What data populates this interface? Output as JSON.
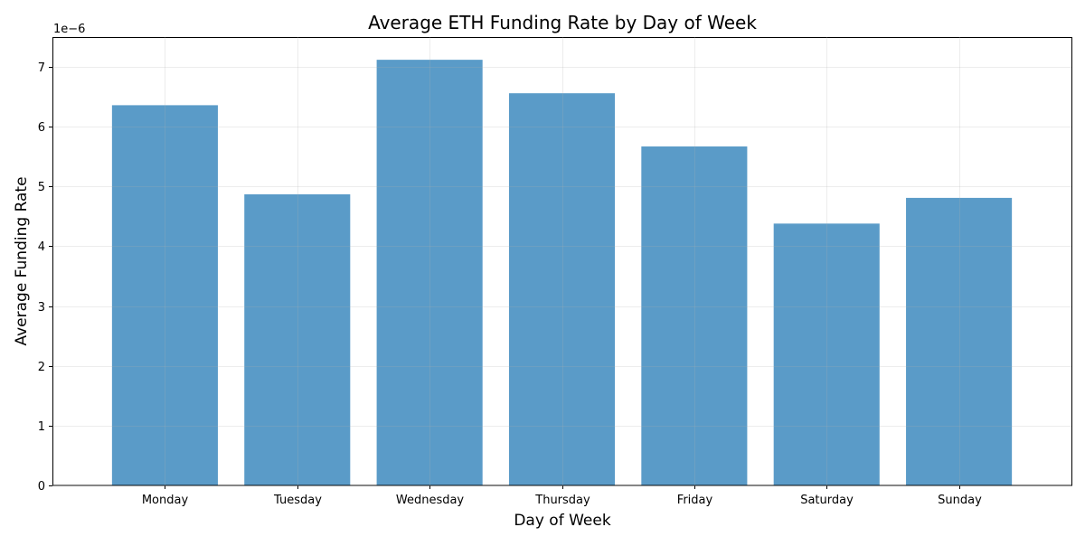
{
  "chart_data": {
    "type": "bar",
    "title": "Average ETH Funding Rate by Day of Week",
    "xlabel": "Day of Week",
    "ylabel": "Average Funding Rate",
    "y_scale_label": "1e−6",
    "categories": [
      "Monday",
      "Tuesday",
      "Wednesday",
      "Thursday",
      "Friday",
      "Saturday",
      "Sunday"
    ],
    "values": [
      6.36,
      4.87,
      7.12,
      6.56,
      5.67,
      4.38,
      4.81
    ],
    "value_multiplier": 1e-06,
    "ylim": [
      0,
      7.5
    ],
    "yticks": [
      0,
      1,
      2,
      3,
      4,
      5,
      6,
      7
    ],
    "ytick_labels": [
      "0",
      "1",
      "2",
      "3",
      "4",
      "5",
      "6",
      "7"
    ],
    "grid": true,
    "bar_color": "#5a9bc8",
    "grid_color": "#e6e6e6"
  }
}
